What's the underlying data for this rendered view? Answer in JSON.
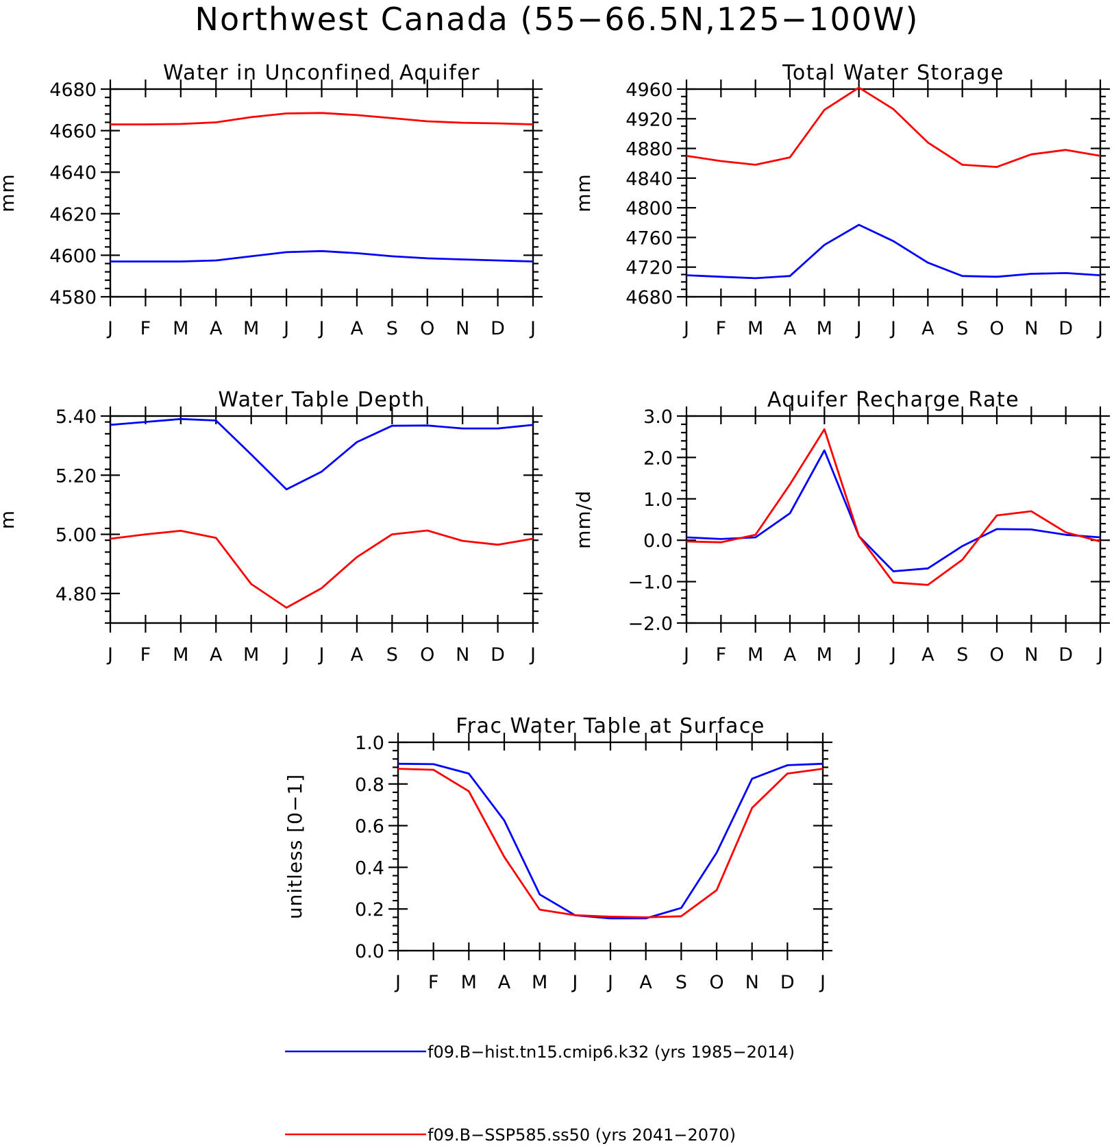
{
  "title": "Northwest Canada (55−66.5N,125−100W)",
  "colors": {
    "blue": "#0000ff",
    "red": "#ff0000",
    "axes": "#000000"
  },
  "legend": [
    {
      "label": "f09.B−hist.tn15.cmip6.k32 (yrs 1985−2014)",
      "color": "#0000ff"
    },
    {
      "label": "f09.B−SSP585.ss50 (yrs 2041−2070)",
      "color": "#ff0000"
    }
  ],
  "chart_data": [
    {
      "type": "line",
      "title": "Water in Unconfined Aquifer",
      "ylabel": "mm",
      "categories": [
        "J",
        "F",
        "M",
        "A",
        "M",
        "J",
        "J",
        "A",
        "S",
        "O",
        "N",
        "D",
        "J"
      ],
      "ylim": [
        4580,
        4680
      ],
      "yticks": [
        4580,
        4600,
        4620,
        4640,
        4660,
        4680
      ],
      "ytick_labels": [
        "4580",
        "4600",
        "4620",
        "4640",
        "4660",
        "4680"
      ],
      "yminor": 4,
      "series": [
        {
          "color": "#0000ff",
          "values": [
            4597,
            4597,
            4597,
            4597.5,
            4599.5,
            4601.5,
            4602,
            4601,
            4599.5,
            4598.5,
            4598,
            4597.5,
            4597
          ]
        },
        {
          "color": "#ff0000",
          "values": [
            4663,
            4663,
            4663.2,
            4664,
            4666.5,
            4668.3,
            4668.5,
            4667.5,
            4666,
            4664.5,
            4663.8,
            4663.5,
            4663
          ]
        }
      ]
    },
    {
      "type": "line",
      "title": "Total Water Storage",
      "ylabel": "mm",
      "categories": [
        "J",
        "F",
        "M",
        "A",
        "M",
        "J",
        "J",
        "A",
        "S",
        "O",
        "N",
        "D",
        "J"
      ],
      "ylim": [
        4680,
        4960
      ],
      "yticks": [
        4680,
        4720,
        4760,
        4800,
        4840,
        4880,
        4920,
        4960
      ],
      "ytick_labels": [
        "4680",
        "4720",
        "4760",
        "4800",
        "4840",
        "4880",
        "4920",
        "4960"
      ],
      "yminor": 3,
      "series": [
        {
          "color": "#0000ff",
          "values": [
            4709,
            4707,
            4705,
            4708,
            4750,
            4777,
            4755,
            4726,
            4708,
            4707,
            4711,
            4712,
            4709
          ]
        },
        {
          "color": "#ff0000",
          "values": [
            4870,
            4863,
            4858,
            4868,
            4932,
            4962,
            4933,
            4888,
            4858,
            4855,
            4872,
            4878,
            4870
          ]
        }
      ]
    },
    {
      "type": "line",
      "title": "Water Table Depth",
      "ylabel": "m",
      "categories": [
        "J",
        "F",
        "M",
        "A",
        "M",
        "J",
        "J",
        "A",
        "S",
        "O",
        "N",
        "D",
        "J"
      ],
      "ylim": [
        4.7,
        5.4
      ],
      "yticks": [
        4.8,
        5.0,
        5.2,
        5.4
      ],
      "ytick_labels": [
        "4.80",
        "5.00",
        "5.20",
        "5.40"
      ],
      "yminor": 4,
      "series": [
        {
          "color": "#0000ff",
          "values": [
            5.37,
            5.38,
            5.39,
            5.385,
            5.27,
            5.152,
            5.212,
            5.312,
            5.367,
            5.368,
            5.358,
            5.358,
            5.37
          ]
        },
        {
          "color": "#ff0000",
          "values": [
            4.985,
            5.0,
            5.012,
            4.988,
            4.832,
            4.752,
            4.818,
            4.923,
            5.0,
            5.013,
            4.978,
            4.965,
            4.985
          ]
        }
      ]
    },
    {
      "type": "line",
      "title": "Aquifer Recharge Rate",
      "ylabel": "mm/d",
      "categories": [
        "J",
        "F",
        "M",
        "A",
        "M",
        "J",
        "J",
        "A",
        "S",
        "O",
        "N",
        "D",
        "J"
      ],
      "ylim": [
        -2.0,
        3.0
      ],
      "yticks": [
        -2.0,
        -1.0,
        0.0,
        1.0,
        2.0,
        3.0
      ],
      "ytick_labels": [
        "−2.0",
        "−1.0",
        "0.0",
        "1.0",
        "2.0",
        "3.0"
      ],
      "yminor": 4,
      "series": [
        {
          "color": "#0000ff",
          "values": [
            0.07,
            0.03,
            0.07,
            0.65,
            2.17,
            0.1,
            -0.75,
            -0.68,
            -0.14,
            0.27,
            0.26,
            0.13,
            0.07
          ]
        },
        {
          "color": "#ff0000",
          "values": [
            -0.03,
            -0.05,
            0.13,
            1.35,
            2.68,
            0.1,
            -1.02,
            -1.08,
            -0.47,
            0.6,
            0.7,
            0.19,
            -0.03
          ]
        }
      ]
    },
    {
      "type": "line",
      "title": "Frac Water Table at Surface",
      "ylabel": "unitless [0−1]",
      "categories": [
        "J",
        "F",
        "M",
        "A",
        "M",
        "J",
        "J",
        "A",
        "S",
        "O",
        "N",
        "D",
        "J"
      ],
      "ylim": [
        0.0,
        1.0
      ],
      "yticks": [
        0.0,
        0.2,
        0.4,
        0.6,
        0.8,
        1.0
      ],
      "ytick_labels": [
        "0.0",
        "0.2",
        "0.4",
        "0.6",
        "0.8",
        "1.0"
      ],
      "yminor": 4,
      "series": [
        {
          "color": "#0000ff",
          "values": [
            0.897,
            0.895,
            0.85,
            0.625,
            0.27,
            0.17,
            0.155,
            0.155,
            0.205,
            0.47,
            0.825,
            0.89,
            0.897
          ]
        },
        {
          "color": "#ff0000",
          "values": [
            0.873,
            0.868,
            0.765,
            0.45,
            0.197,
            0.17,
            0.163,
            0.16,
            0.165,
            0.29,
            0.685,
            0.85,
            0.873
          ]
        }
      ]
    }
  ]
}
